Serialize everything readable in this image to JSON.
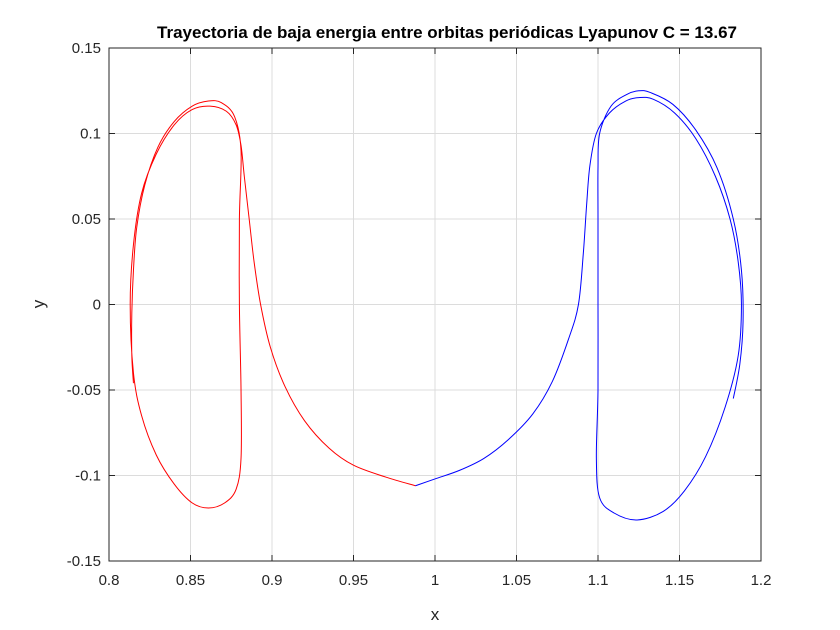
{
  "chart_data": {
    "type": "line",
    "title": "Trayectoria de baja energia entre orbitas periódicas Lyapunov C = 13.67",
    "xlabel": "x",
    "ylabel": "y",
    "xlim": [
      0.8,
      1.2
    ],
    "ylim": [
      -0.15,
      0.15
    ],
    "grid": true,
    "x_ticks": [
      "0.8",
      "0.85",
      "0.9",
      "0.95",
      "1",
      "1.05",
      "1.1",
      "1.15",
      "1.2"
    ],
    "y_ticks": [
      "-0.15",
      "-0.1",
      "-0.05",
      "0",
      "0.05",
      "0.1",
      "0.15"
    ],
    "series": [
      {
        "color": "#ff0000",
        "segments": [
          [
            [
              0.988,
              -0.106
            ],
            [
              0.97,
              -0.101
            ],
            [
              0.95,
              -0.094
            ],
            [
              0.935,
              -0.084
            ],
            [
              0.92,
              -0.068
            ],
            [
              0.908,
              -0.048
            ],
            [
              0.899,
              -0.025
            ],
            [
              0.893,
              0.0
            ],
            [
              0.889,
              0.025
            ],
            [
              0.886,
              0.05
            ],
            [
              0.883,
              0.075
            ],
            [
              0.881,
              0.093
            ],
            [
              0.878,
              0.105
            ],
            [
              0.872,
              0.113
            ],
            [
              0.862,
              0.116
            ],
            [
              0.851,
              0.114
            ],
            [
              0.84,
              0.105
            ],
            [
              0.829,
              0.088
            ],
            [
              0.82,
              0.065
            ],
            [
              0.815,
              0.035
            ],
            [
              0.813,
              0.0
            ],
            [
              0.815,
              -0.04
            ],
            [
              0.82,
              -0.065
            ],
            [
              0.829,
              -0.088
            ],
            [
              0.84,
              -0.105
            ],
            [
              0.851,
              -0.116
            ],
            [
              0.861,
              -0.119
            ],
            [
              0.871,
              -0.116
            ],
            [
              0.878,
              -0.108
            ],
            [
              0.881,
              -0.09
            ],
            [
              0.881,
              -0.05
            ],
            [
              0.88,
              0.0
            ],
            [
              0.88,
              0.05
            ],
            [
              0.881,
              0.09
            ],
            [
              0.877,
              0.11
            ],
            [
              0.869,
              0.118
            ],
            [
              0.861,
              0.119
            ],
            [
              0.851,
              0.116
            ],
            [
              0.84,
              0.107
            ],
            [
              0.83,
              0.092
            ],
            [
              0.822,
              0.07
            ],
            [
              0.817,
              0.045
            ],
            [
              0.815,
              0.02
            ],
            [
              0.814,
              -0.005
            ],
            [
              0.814,
              -0.03
            ],
            [
              0.815,
              -0.046
            ]
          ]
        ]
      },
      {
        "color": "#0000ff",
        "segments": [
          [
            [
              0.988,
              -0.106
            ],
            [
              1.0,
              -0.102
            ],
            [
              1.015,
              -0.097
            ],
            [
              1.03,
              -0.09
            ],
            [
              1.045,
              -0.079
            ],
            [
              1.06,
              -0.064
            ],
            [
              1.072,
              -0.045
            ],
            [
              1.082,
              -0.02
            ],
            [
              1.088,
              0.0
            ],
            [
              1.091,
              0.03
            ],
            [
              1.093,
              0.058
            ],
            [
              1.095,
              0.081
            ],
            [
              1.099,
              0.1
            ],
            [
              1.107,
              0.112
            ],
            [
              1.117,
              0.119
            ],
            [
              1.125,
              0.121
            ],
            [
              1.134,
              0.12
            ],
            [
              1.147,
              0.112
            ],
            [
              1.16,
              0.097
            ],
            [
              1.172,
              0.075
            ],
            [
              1.181,
              0.05
            ],
            [
              1.186,
              0.025
            ],
            [
              1.188,
              0.0
            ],
            [
              1.186,
              -0.03
            ],
            [
              1.178,
              -0.06
            ],
            [
              1.166,
              -0.089
            ],
            [
              1.153,
              -0.109
            ],
            [
              1.14,
              -0.121
            ],
            [
              1.124,
              -0.126
            ],
            [
              1.11,
              -0.122
            ],
            [
              1.101,
              -0.113
            ],
            [
              1.099,
              -0.09
            ],
            [
              1.1,
              -0.05
            ],
            [
              1.1,
              0.0
            ],
            [
              1.1,
              0.05
            ],
            [
              1.1,
              0.08
            ],
            [
              1.101,
              0.1
            ],
            [
              1.108,
              0.116
            ],
            [
              1.118,
              0.123
            ],
            [
              1.125,
              0.125
            ],
            [
              1.132,
              0.124
            ],
            [
              1.146,
              0.117
            ],
            [
              1.16,
              0.102
            ],
            [
              1.173,
              0.08
            ],
            [
              1.183,
              0.05
            ],
            [
              1.188,
              0.02
            ],
            [
              1.189,
              -0.01
            ],
            [
              1.187,
              -0.035
            ],
            [
              1.183,
              -0.055
            ]
          ]
        ]
      }
    ]
  }
}
